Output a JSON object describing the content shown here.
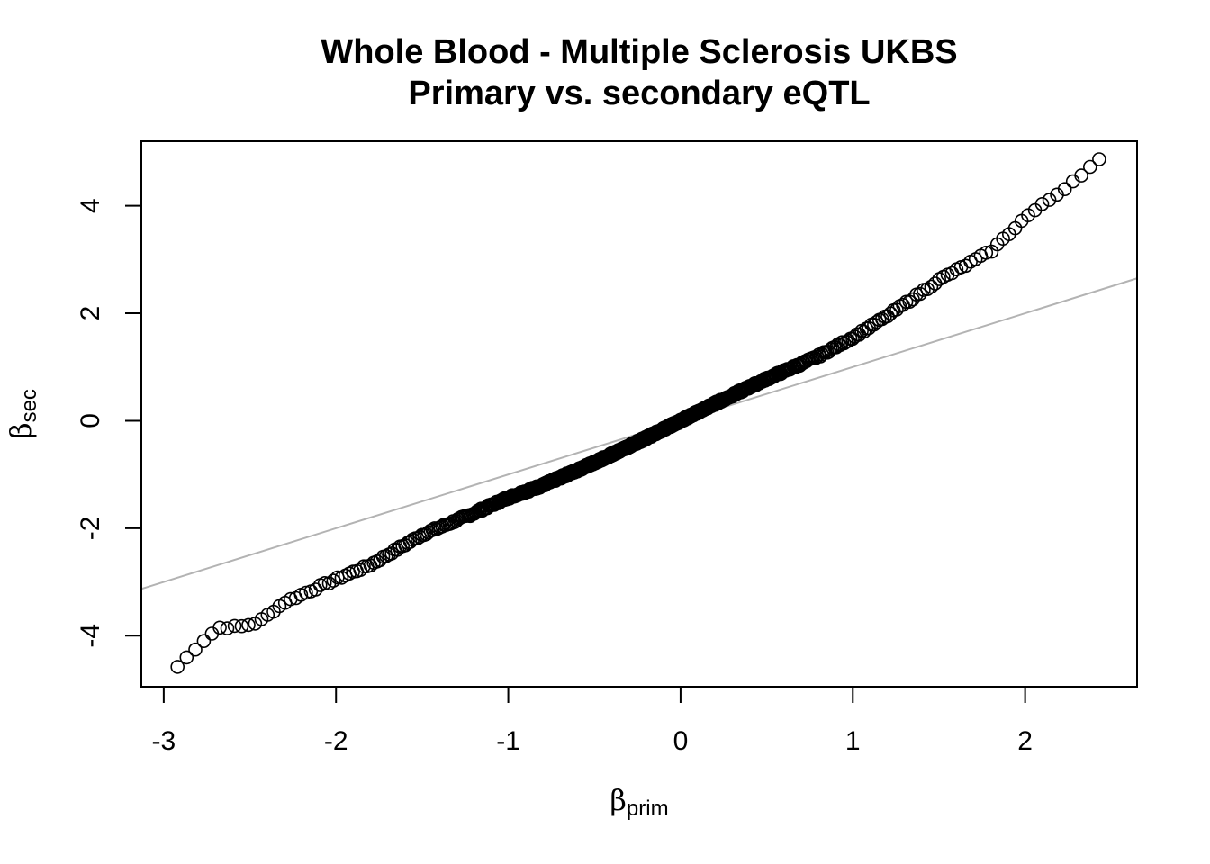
{
  "chart_data": {
    "type": "scatter",
    "title": "Whole Blood - Multiple Sclerosis UKBS",
    "subtitle": "Primary vs. secondary eQTL",
    "xlabel": {
      "symbol": "β",
      "subscript": "prim"
    },
    "ylabel": {
      "symbol": "β",
      "subscript": "sec"
    },
    "xlim": [
      -3.13,
      2.65
    ],
    "ylim": [
      -4.95,
      5.2
    ],
    "x_ticks": [
      -3,
      -2,
      -1,
      0,
      1,
      2
    ],
    "y_ticks": [
      -4,
      -2,
      0,
      2,
      4
    ],
    "x_tick_labels": [
      "-3",
      "-2",
      "-1",
      "0",
      "1",
      "2"
    ],
    "y_tick_labels": [
      "-4",
      "-2",
      "0",
      "2",
      "4"
    ],
    "grid": false,
    "point_style": "open circle",
    "point_color": "#000000",
    "reference_line": {
      "intercept": 0,
      "slope": 1,
      "color": "#b3b3b3"
    },
    "curve_knots": [
      [
        -2.92,
        -4.58
      ],
      [
        -2.85,
        -4.35
      ],
      [
        -2.78,
        -4.12
      ],
      [
        -2.68,
        -3.85
      ],
      [
        -2.55,
        -3.83
      ],
      [
        -2.45,
        -3.75
      ],
      [
        -2.3,
        -3.38
      ],
      [
        -2.0,
        -2.95
      ],
      [
        -1.8,
        -2.68
      ],
      [
        -1.5,
        -2.12
      ],
      [
        -1.2,
        -1.72
      ],
      [
        -1.0,
        -1.43
      ],
      [
        -0.8,
        -1.2
      ],
      [
        -0.5,
        -0.78
      ],
      [
        -0.2,
        -0.32
      ],
      [
        0.0,
        0.0
      ],
      [
        0.2,
        0.32
      ],
      [
        0.5,
        0.78
      ],
      [
        0.8,
        1.2
      ],
      [
        1.0,
        1.55
      ],
      [
        1.2,
        1.95
      ],
      [
        1.5,
        2.62
      ],
      [
        1.8,
        3.15
      ],
      [
        2.0,
        3.78
      ],
      [
        2.2,
        4.25
      ],
      [
        2.35,
        4.65
      ],
      [
        2.43,
        4.85
      ]
    ],
    "n_points": 900
  }
}
